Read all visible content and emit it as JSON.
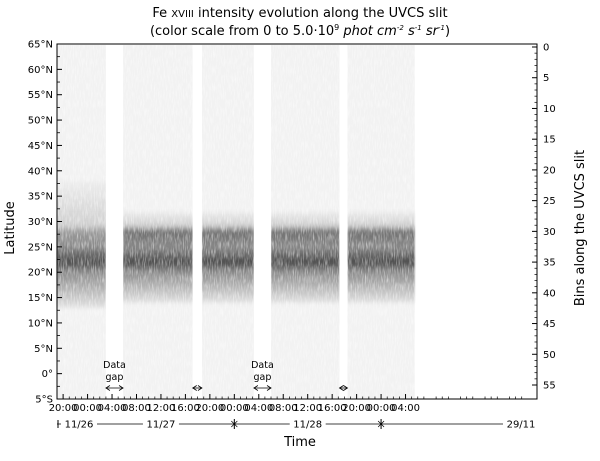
{
  "chart_data": {
    "type": "heatmap",
    "title": {
      "line1_prefix": "Fe ",
      "line1_roman": "XVIII",
      "line1_suffix": " intensity evolution along the UVCS slit",
      "line2_prefix": "(color scale from 0 to 5.0·10",
      "line2_exp": "9",
      "line2_units": " phot cm",
      "line2_units_sup": "-2",
      "line2_units2": " s",
      "line2_units2_sup": "-1",
      "line2_units3": " sr",
      "line2_units3_sup": "-1",
      "line2_close": ")"
    },
    "ylabel": "Latitude",
    "y2label": "Bins along the UVCS slit",
    "xlabel": "Time",
    "colormap": "white to black (grayscale)",
    "color_range": [
      0,
      5000000000.0
    ],
    "ylim_latitude": [
      -5,
      65
    ],
    "latitude_ticks": [
      {
        "value": 65,
        "label": "65°N"
      },
      {
        "value": 60,
        "label": "60°N"
      },
      {
        "value": 55,
        "label": "55°N"
      },
      {
        "value": 50,
        "label": "50°N"
      },
      {
        "value": 45,
        "label": "45°N"
      },
      {
        "value": 40,
        "label": "40°N"
      },
      {
        "value": 35,
        "label": "35°N"
      },
      {
        "value": 30,
        "label": "30°N"
      },
      {
        "value": 25,
        "label": "25°N"
      },
      {
        "value": 20,
        "label": "20°N"
      },
      {
        "value": 15,
        "label": "15°N"
      },
      {
        "value": 10,
        "label": "10°N"
      },
      {
        "value": 5,
        "label": "5°N"
      },
      {
        "value": 0,
        "label": "0°"
      },
      {
        "value": -5,
        "label": "5°S"
      }
    ],
    "bin_ticks": [
      0,
      5,
      10,
      15,
      20,
      25,
      30,
      35,
      40,
      45,
      50,
      55
    ],
    "bin_ticks_labels": [
      "0",
      "5",
      "10",
      "15",
      "20",
      "25",
      "30",
      "35",
      "40",
      "45",
      "50",
      "55"
    ],
    "time_range_hours": [
      -5,
      73.5
    ],
    "time_ticks": [
      {
        "hour": -4,
        "label": "20:00"
      },
      {
        "hour": 0,
        "label": "00:00"
      },
      {
        "hour": 4,
        "label": "04:00"
      },
      {
        "hour": 8,
        "label": "08:00"
      },
      {
        "hour": 12,
        "label": "12:00"
      },
      {
        "hour": 16,
        "label": "16:00"
      },
      {
        "hour": 20,
        "label": "20:00"
      },
      {
        "hour": 24,
        "label": "00:00"
      },
      {
        "hour": 28,
        "label": "04:00"
      },
      {
        "hour": 32,
        "label": "08:00"
      },
      {
        "hour": 36,
        "label": "12:00"
      },
      {
        "hour": 40,
        "label": "16:00"
      },
      {
        "hour": 44,
        "label": "20:00"
      },
      {
        "hour": 48,
        "label": "00:00"
      },
      {
        "hour": 52,
        "label": "04:00"
      }
    ],
    "day_labels": [
      "11/26",
      "11/27",
      "11/28",
      "29/11"
    ],
    "observation_segments": [
      {
        "start": -5,
        "end": 3.0,
        "lat_min": 13,
        "lat_max": 38
      },
      {
        "start": 5.8,
        "end": 17.2,
        "lat_min": 14,
        "lat_max": 32
      },
      {
        "start": 18.7,
        "end": 27.2,
        "lat_min": 14,
        "lat_max": 32
      },
      {
        "start": 30.0,
        "end": 41.2,
        "lat_min": 14,
        "lat_max": 32
      },
      {
        "start": 42.5,
        "end": 53.5,
        "lat_min": 14,
        "lat_max": 32
      }
    ],
    "band_centers_latitude": [
      28,
      22
    ],
    "annotations": [
      {
        "text_line1": "Data",
        "text_line2": "gap",
        "from": 3.0,
        "to": 5.8
      },
      {
        "text_line1": "",
        "text_line2": "",
        "from": 17.2,
        "to": 18.7
      },
      {
        "text_line1": "Data",
        "text_line2": "gap",
        "from": 27.2,
        "to": 30.0
      },
      {
        "text_line1": "",
        "text_line2": "",
        "from": 41.2,
        "to": 42.5
      }
    ]
  }
}
